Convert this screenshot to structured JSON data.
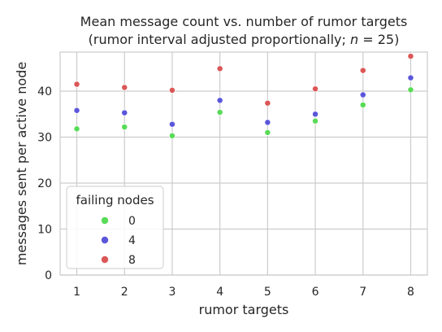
{
  "chart_data": {
    "type": "scatter",
    "title_line1": "Mean message count vs. number of rumor targets",
    "title_line2_prefix": "(rumor interval adjusted proportionally; ",
    "title_line2_n": "n",
    "title_line2_suffix": " = 25)",
    "xlabel": "rumor targets",
    "ylabel": "messages sent per active node",
    "x": [
      1,
      2,
      3,
      4,
      5,
      6,
      7,
      8
    ],
    "xticks": [
      "1",
      "2",
      "3",
      "4",
      "5",
      "6",
      "7",
      "8"
    ],
    "yticks": [
      0,
      10,
      20,
      30,
      40
    ],
    "ylim": [
      0,
      48.5
    ],
    "xlim": [
      0.65,
      8.35
    ],
    "grid": true,
    "legend": {
      "title": "failing nodes",
      "placement": "lower-left"
    },
    "series": [
      {
        "name": "0",
        "color": "#59db57",
        "values": [
          31.8,
          32.2,
          30.3,
          35.4,
          31.0,
          33.5,
          37.0,
          40.3
        ]
      },
      {
        "name": "4",
        "color": "#5b57db",
        "values": [
          35.8,
          35.3,
          32.8,
          38.0,
          33.2,
          35.0,
          39.2,
          42.9
        ]
      },
      {
        "name": "8",
        "color": "#db5757",
        "values": [
          41.5,
          40.8,
          40.2,
          44.9,
          37.4,
          40.5,
          44.5,
          47.6
        ]
      }
    ]
  }
}
